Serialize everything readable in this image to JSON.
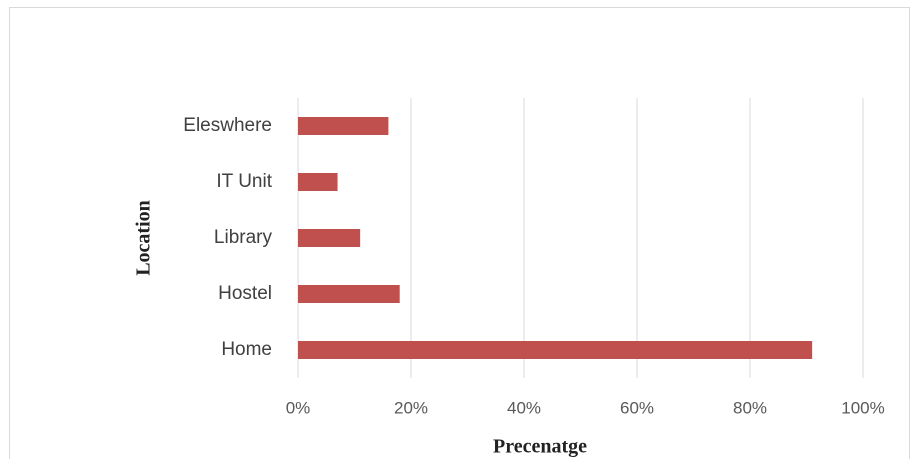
{
  "chart_data": {
    "type": "bar",
    "orientation": "horizontal",
    "x_label": "Precenatge",
    "y_label": "Location",
    "categories": [
      "Eleswhere",
      "IT Unit",
      "Library",
      "Hostel",
      "Home"
    ],
    "values": [
      16,
      7,
      11,
      18,
      91
    ],
    "color": "#c0504d",
    "xlim": [
      0,
      100
    ],
    "xticks": [
      {
        "value": 0,
        "label": "0%"
      },
      {
        "value": 20,
        "label": "20%"
      },
      {
        "value": 40,
        "label": "40%"
      },
      {
        "value": 60,
        "label": "60%"
      },
      {
        "value": 80,
        "label": "80%"
      },
      {
        "value": 100,
        "label": "100%"
      }
    ],
    "grid": true
  }
}
